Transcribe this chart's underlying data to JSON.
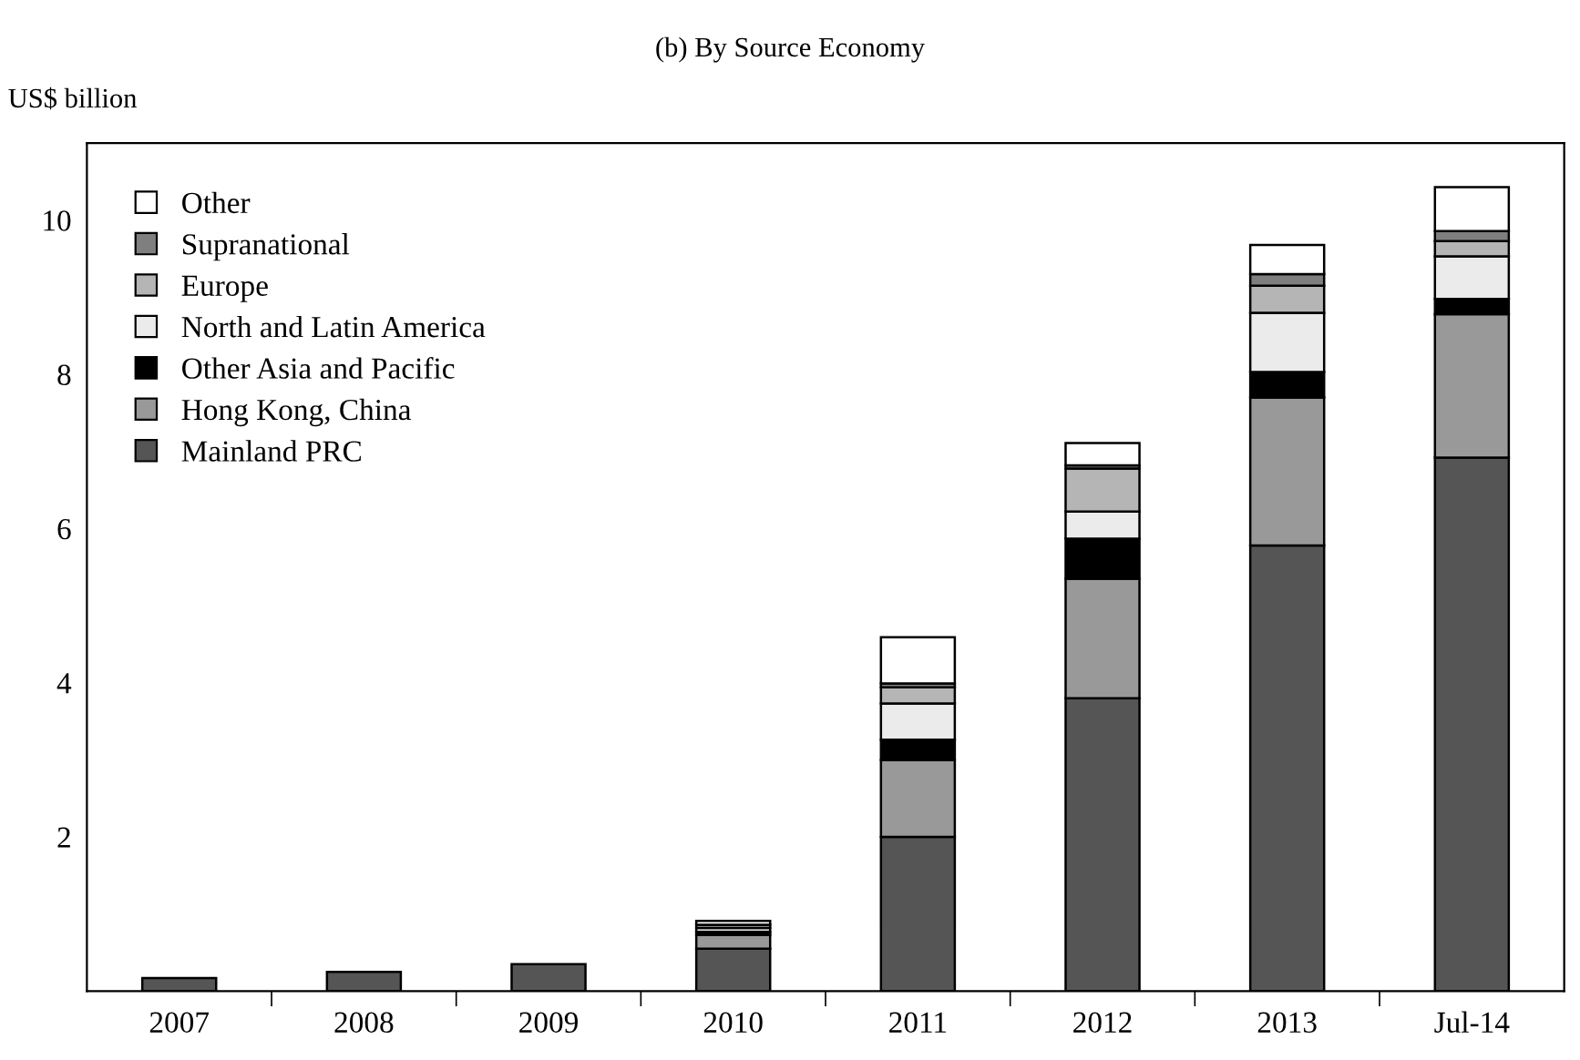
{
  "chart_data": {
    "type": "bar",
    "title": "(b) By Source Economy",
    "ylabel": "US$ billion",
    "categories": [
      "2007",
      "2008",
      "2009",
      "2010",
      "2011",
      "2012",
      "2013",
      "Jul-14"
    ],
    "stacked": true,
    "ylim": [
      0,
      11
    ],
    "yticks": [
      2,
      4,
      6,
      8,
      10
    ],
    "grid": false,
    "legend": "top left",
    "series": [
      {
        "name": "Mainland PRC",
        "color": "#555555",
        "values": [
          0.17,
          0.25,
          0.35,
          0.55,
          2.0,
          3.8,
          5.78,
          6.92
        ]
      },
      {
        "name": "Hong Kong, China",
        "color": "#999999",
        "values": [
          null,
          null,
          null,
          0.18,
          1.0,
          1.55,
          1.92,
          1.86
        ]
      },
      {
        "name": "Other Asia and Pacific",
        "color": "#000000",
        "values": [
          null,
          null,
          null,
          0.04,
          0.26,
          0.52,
          0.33,
          0.2
        ]
      },
      {
        "name": "North and Latin America",
        "color": "#ebebeb",
        "values": [
          null,
          null,
          null,
          0.05,
          0.47,
          0.35,
          0.77,
          0.55
        ]
      },
      {
        "name": "Europe",
        "color": "#b5b5b5",
        "values": [
          null,
          null,
          null,
          0.04,
          0.21,
          0.56,
          0.35,
          0.2
        ]
      },
      {
        "name": "Supranational",
        "color": "#7f7f7f",
        "values": [
          null,
          null,
          null,
          null,
          0.05,
          0.04,
          0.15,
          0.13
        ]
      },
      {
        "name": "Other",
        "color": "#ffffff",
        "values": [
          null,
          null,
          null,
          0.05,
          0.6,
          0.29,
          0.38,
          0.57
        ]
      }
    ]
  }
}
